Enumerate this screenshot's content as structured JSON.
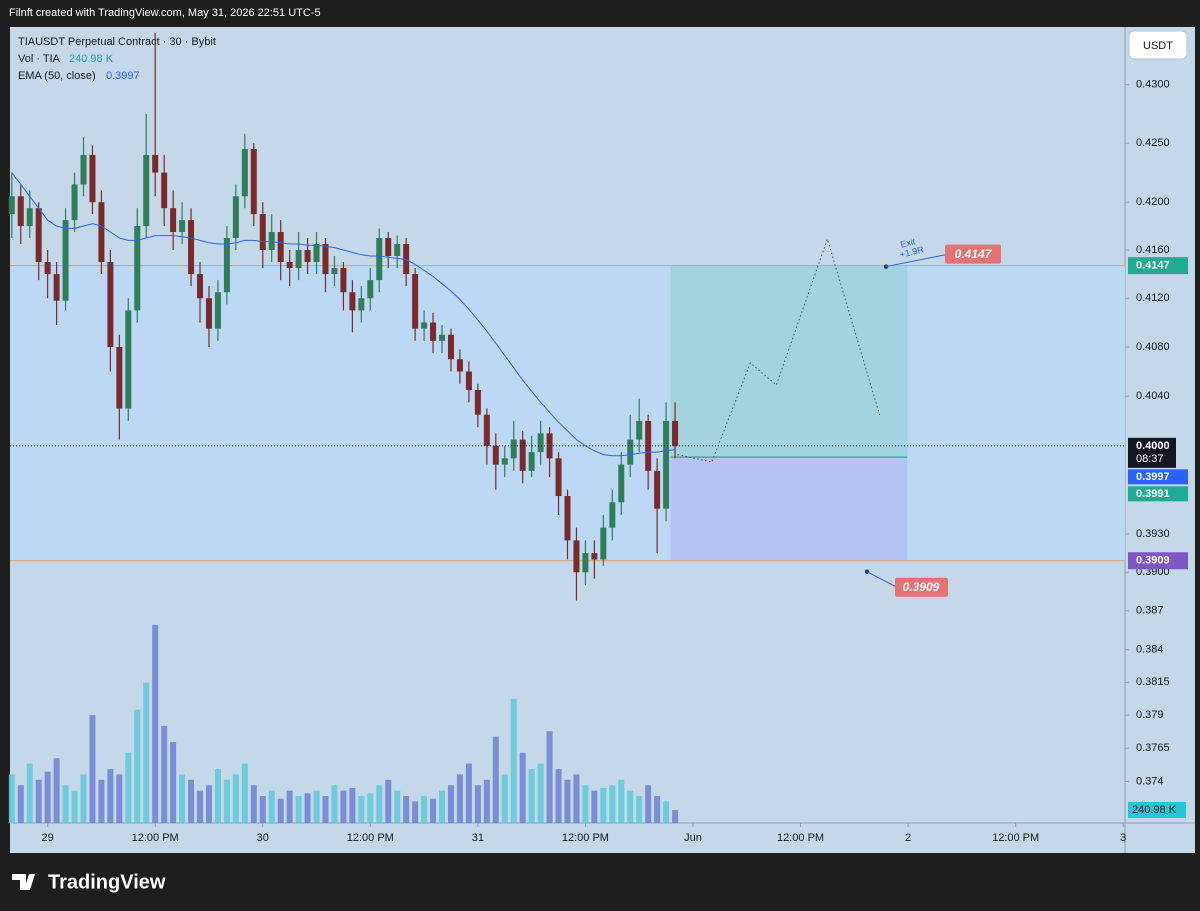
{
  "header": {
    "text": "Filnft created with TradingView.com, May 31, 2026 22:51 UTC-5"
  },
  "footer": {
    "brand": "TradingView"
  },
  "chart_data": {
    "type": "candlestick",
    "symbol": "TIAUSDT Perpetual Contract · 30 · Bybit",
    "currency": "USDT",
    "up_color": "#2e7d5b",
    "down_color": "#7a2a2a",
    "log_scale": true,
    "grid": false,
    "ylim": [
      0.3709,
      0.435
    ],
    "yticks": [
      {
        "value": 0.43,
        "label": "0.4300"
      },
      {
        "value": 0.425,
        "label": "0.4250"
      },
      {
        "value": 0.42,
        "label": "0.4200"
      },
      {
        "value": 0.416,
        "label": "0.4160"
      },
      {
        "value": 0.412,
        "label": "0.4120"
      },
      {
        "value": 0.408,
        "label": "0.4080"
      },
      {
        "value": 0.404,
        "label": "0.4040"
      },
      {
        "value": 0.393,
        "label": "0.3930"
      },
      {
        "value": 0.39,
        "label": "0.3900"
      },
      0.387,
      0.384,
      0.3815,
      0.379,
      0.3765,
      0.374
    ],
    "xlim": [
      -0.2,
      124.2
    ],
    "xticks": [
      {
        "value": 4,
        "label": "29"
      },
      {
        "value": 16,
        "label": "12:00 PM"
      },
      {
        "value": 28,
        "label": "30"
      },
      {
        "value": 40,
        "label": "12:00 PM"
      },
      {
        "value": 52,
        "label": "31"
      },
      {
        "value": 64,
        "label": "12:00 PM"
      },
      {
        "value": 76,
        "label": "Jun"
      },
      {
        "value": 88,
        "label": "12:00 PM"
      },
      {
        "value": 100,
        "label": "2"
      },
      {
        "value": 112,
        "label": "12:00 PM"
      },
      {
        "value": 124,
        "label": "3"
      }
    ],
    "open": [
      0.419,
      0.4205,
      0.418,
      0.4195,
      0.415,
      0.414,
      0.4118,
      0.4185,
      0.4215,
      0.424,
      0.42,
      0.415,
      0.408,
      0.403,
      0.411,
      0.418,
      0.424,
      0.4225,
      0.4195,
      0.4175,
      0.4185,
      0.414,
      0.412,
      0.4095,
      0.4125,
      0.417,
      0.4205,
      0.4245,
      0.419,
      0.416,
      0.4175,
      0.415,
      0.4145,
      0.416,
      0.415,
      0.4165,
      0.414,
      0.4145,
      0.4125,
      0.411,
      0.412,
      0.4135,
      0.417,
      0.4155,
      0.4165,
      0.414,
      0.4095,
      0.41,
      0.4085,
      0.409,
      0.407,
      0.406,
      0.4045,
      0.4025,
      0.4,
      0.3985,
      0.399,
      0.4005,
      0.398,
      0.3995,
      0.401,
      0.399,
      0.396,
      0.3925,
      0.39,
      0.3915,
      0.391,
      0.3935,
      0.3955,
      0.3985,
      0.4005,
      0.402,
      0.398,
      0.395,
      0.402
    ],
    "high": [
      0.4225,
      0.4215,
      0.421,
      0.42,
      0.416,
      0.415,
      0.4195,
      0.4225,
      0.4255,
      0.4248,
      0.421,
      0.416,
      0.409,
      0.412,
      0.4195,
      0.4275,
      0.4345,
      0.424,
      0.421,
      0.42,
      0.4195,
      0.415,
      0.413,
      0.4135,
      0.418,
      0.4215,
      0.4258,
      0.425,
      0.42,
      0.419,
      0.4185,
      0.416,
      0.4175,
      0.417,
      0.4175,
      0.417,
      0.4155,
      0.415,
      0.4135,
      0.413,
      0.4145,
      0.4178,
      0.4175,
      0.4172,
      0.417,
      0.4145,
      0.411,
      0.4108,
      0.4098,
      0.4095,
      0.4078,
      0.4068,
      0.405,
      0.403,
      0.401,
      0.4,
      0.402,
      0.4012,
      0.4008,
      0.402,
      0.4015,
      0.3995,
      0.3965,
      0.3935,
      0.3925,
      0.3925,
      0.3945,
      0.3965,
      0.3995,
      0.4025,
      0.4038,
      0.4025,
      0.399,
      0.4035,
      0.4035
    ],
    "low": [
      0.417,
      0.4165,
      0.417,
      0.4135,
      0.412,
      0.4098,
      0.411,
      0.4175,
      0.4205,
      0.419,
      0.414,
      0.406,
      0.4005,
      0.402,
      0.41,
      0.417,
      0.4205,
      0.418,
      0.416,
      0.4165,
      0.413,
      0.41,
      0.408,
      0.4085,
      0.4115,
      0.416,
      0.4195,
      0.418,
      0.4145,
      0.415,
      0.4135,
      0.413,
      0.4135,
      0.414,
      0.414,
      0.4125,
      0.413,
      0.411,
      0.4092,
      0.41,
      0.411,
      0.4125,
      0.4145,
      0.4145,
      0.413,
      0.4085,
      0.4085,
      0.4075,
      0.4075,
      0.406,
      0.405,
      0.4035,
      0.4015,
      0.3985,
      0.3965,
      0.3975,
      0.398,
      0.397,
      0.3975,
      0.3985,
      0.3975,
      0.3945,
      0.391,
      0.3878,
      0.389,
      0.3895,
      0.3905,
      0.3925,
      0.3945,
      0.3975,
      0.3995,
      0.3965,
      0.3915,
      0.394,
      0.399
    ],
    "close": [
      0.4205,
      0.418,
      0.4195,
      0.415,
      0.414,
      0.4118,
      0.4185,
      0.4215,
      0.424,
      0.42,
      0.415,
      0.408,
      0.403,
      0.411,
      0.418,
      0.424,
      0.4225,
      0.4195,
      0.4175,
      0.4185,
      0.414,
      0.412,
      0.4095,
      0.4125,
      0.417,
      0.4205,
      0.4245,
      0.419,
      0.416,
      0.4175,
      0.415,
      0.4145,
      0.416,
      0.415,
      0.4165,
      0.414,
      0.4145,
      0.4125,
      0.411,
      0.412,
      0.4135,
      0.417,
      0.4155,
      0.4165,
      0.414,
      0.4095,
      0.41,
      0.4085,
      0.409,
      0.407,
      0.406,
      0.4045,
      0.4025,
      0.4,
      0.3985,
      0.399,
      0.4005,
      0.398,
      0.3995,
      0.401,
      0.399,
      0.396,
      0.3925,
      0.39,
      0.3915,
      0.391,
      0.3935,
      0.3955,
      0.3985,
      0.4005,
      0.402,
      0.398,
      0.395,
      0.402,
      0.4
    ],
    "volume": {
      "name": "Vol · TIA",
      "up_color": "#5fc9d9",
      "down_color": "#6f80d3",
      "lim": [
        0,
        14750
      ],
      "values": [
        900,
        700,
        1100,
        800,
        950,
        1200,
        700,
        600,
        900,
        2000,
        800,
        1000,
        900,
        1300,
        2100,
        2600,
        3670,
        1800,
        1500,
        900,
        800,
        600,
        700,
        1000,
        800,
        900,
        1100,
        700,
        500,
        600,
        450,
        600,
        500,
        550,
        600,
        500,
        700,
        600,
        650,
        500,
        550,
        700,
        800,
        600,
        500,
        400,
        500,
        450,
        600,
        700,
        900,
        1100,
        700,
        800,
        1600,
        900,
        2300,
        1300,
        1000,
        1100,
        1700,
        1000,
        800,
        900,
        700,
        600,
        650,
        700,
        800,
        600,
        500,
        700,
        500,
        400,
        240.98
      ],
      "last_value_label": "240.98 K"
    },
    "ema": {
      "name": "EMA (50, close)",
      "color": "#2962ff",
      "values": [
        0.4225,
        0.4215,
        0.4205,
        0.4195,
        0.4185,
        0.418,
        0.4178,
        0.4178,
        0.418,
        0.4182,
        0.418,
        0.4175,
        0.417,
        0.4168,
        0.4168,
        0.417,
        0.4172,
        0.4172,
        0.4172,
        0.4171,
        0.417,
        0.4168,
        0.4166,
        0.4165,
        0.4165,
        0.4166,
        0.4168,
        0.4168,
        0.4167,
        0.4167,
        0.4166,
        0.4165,
        0.4165,
        0.4164,
        0.4164,
        0.4163,
        0.4162,
        0.416,
        0.4158,
        0.4156,
        0.4155,
        0.4155,
        0.4154,
        0.4153,
        0.4152,
        0.4148,
        0.4143,
        0.4138,
        0.4132,
        0.4126,
        0.4119,
        0.4111,
        0.4102,
        0.4093,
        0.4083,
        0.4073,
        0.4063,
        0.4053,
        0.4044,
        0.4035,
        0.4027,
        0.4019,
        0.4012,
        0.4005,
        0.4,
        0.3996,
        0.3993,
        0.3992,
        0.3992,
        0.3993,
        0.3994,
        0.3995,
        0.3995,
        0.3996,
        0.3997
      ]
    },
    "current_price": {
      "value": 0.4,
      "label": "0.4000",
      "countdown": "08:37"
    },
    "position": {
      "entry": 0.3991,
      "target": 0.4147,
      "stop": 0.3909,
      "start": 73.5,
      "end": 99.9,
      "exit_note": "Exit",
      "r_multiple": "+1.9R",
      "line_color": "#e0a060",
      "target_color": "#22ab94",
      "stop_color": "#7e57c2",
      "callout_color": "#e57373"
    },
    "projection": {
      "x": [
        74.3,
        78.1,
        82.4,
        85.3,
        91.0,
        96.9
      ],
      "y": [
        0.3993,
        0.3987,
        0.4067,
        0.4049,
        0.4169,
        0.4023
      ]
    }
  }
}
